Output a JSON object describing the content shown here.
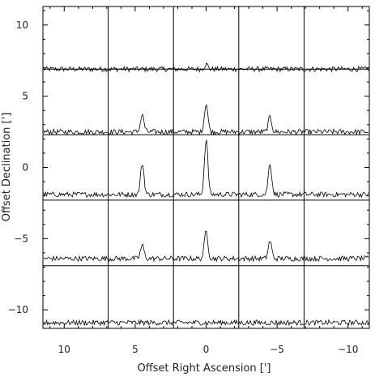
{
  "chart_data": {
    "type": "line",
    "title": "",
    "xlabel": "Offset Right Ascension [']",
    "ylabel": "Offset Declination [']",
    "xlim": [
      11.5,
      -11.5
    ],
    "ylim": [
      -11.3,
      11.3
    ],
    "grid": {
      "columns": 5,
      "rows": 5,
      "x_boundaries": [
        11.5,
        6.9,
        2.3,
        -2.3,
        -6.9,
        -11.5
      ],
      "y_boundaries": [
        11.3,
        6.9,
        2.3,
        -2.3,
        -6.9,
        -11.3
      ]
    },
    "x_ticks": [
      {
        "value": 10,
        "label": "10"
      },
      {
        "value": 5,
        "label": "5"
      },
      {
        "value": 0,
        "label": "0"
      },
      {
        "value": -5,
        "label": "−5"
      },
      {
        "value": -10,
        "label": "−10"
      }
    ],
    "y_ticks": [
      {
        "value": 10,
        "label": "10"
      },
      {
        "value": 5,
        "label": "5"
      },
      {
        "value": 0,
        "label": "0"
      },
      {
        "value": -5,
        "label": "−5"
      },
      {
        "value": -10,
        "label": "−10"
      }
    ],
    "spectra_rows": [
      {
        "row": 1,
        "dec_center": 9.1,
        "baseline_dec": 6.9,
        "peaks": [
          {
            "ra": 0.0,
            "height": 0.35
          }
        ]
      },
      {
        "row": 2,
        "dec_center": 4.6,
        "baseline_dec": 2.5,
        "peaks": [
          {
            "ra": 4.5,
            "height": 1.2
          },
          {
            "ra": 0.0,
            "height": 2.0
          },
          {
            "ra": -4.5,
            "height": 1.05
          }
        ]
      },
      {
        "row": 3,
        "dec_center": 0.0,
        "baseline_dec": -1.9,
        "peaks": [
          {
            "ra": 4.5,
            "height": 2.2
          },
          {
            "ra": 0.0,
            "height": 3.9
          },
          {
            "ra": -4.5,
            "height": 2.2
          }
        ]
      },
      {
        "row": 4,
        "dec_center": -4.6,
        "baseline_dec": -6.4,
        "peaks": [
          {
            "ra": 4.5,
            "height": 0.95
          },
          {
            "ra": 0.0,
            "height": 1.95
          },
          {
            "ra": -4.5,
            "height": 1.25
          }
        ]
      },
      {
        "row": 5,
        "dec_center": -9.1,
        "baseline_dec": -10.9,
        "peaks": []
      }
    ],
    "noise_amplitude": 0.18
  }
}
